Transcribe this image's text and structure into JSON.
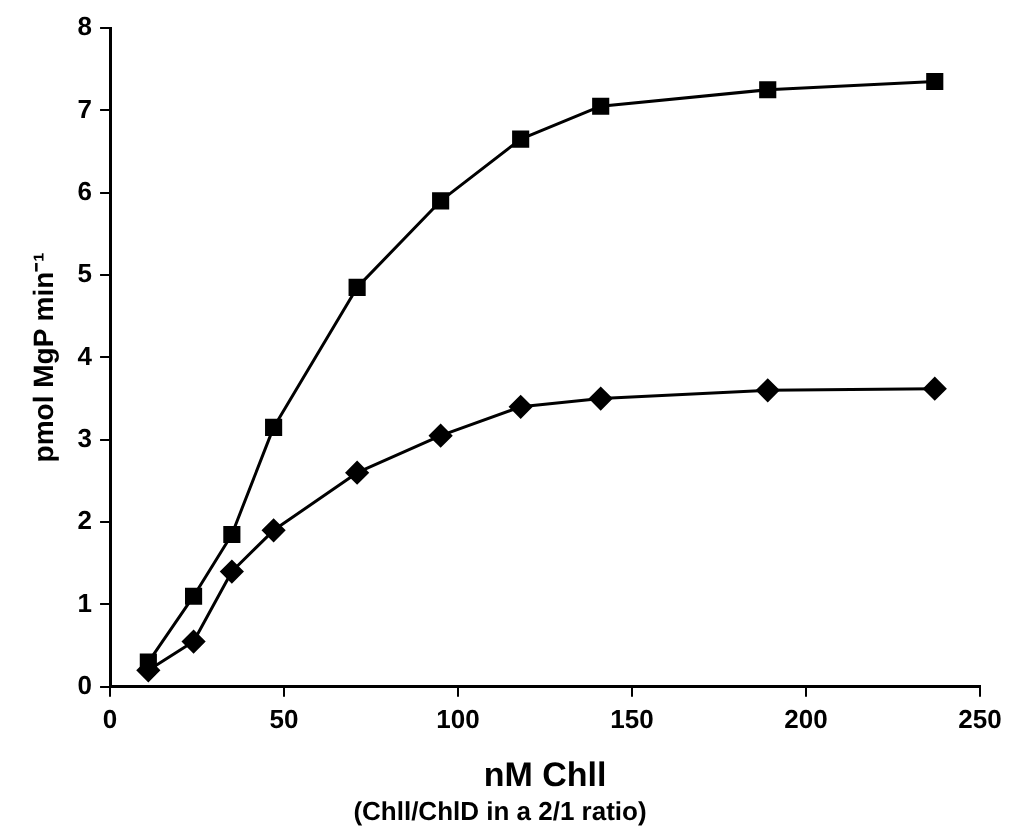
{
  "chart_data": {
    "type": "line",
    "xlabel": "nM Chll",
    "ylabel": "pmol MgP min⁻¹",
    "annotations": [
      "(Chll/ChlD in a 2/1 ratio)"
    ],
    "xlim": [
      0,
      250
    ],
    "xticks": [
      0,
      50,
      100,
      150,
      200,
      250
    ],
    "ylim": [
      0,
      8
    ],
    "yticks": [
      0,
      1,
      2,
      3,
      4,
      5,
      6,
      7,
      8
    ],
    "grid": false,
    "legend": false,
    "line_style": "solid",
    "series": [
      {
        "color": "#000000",
        "marker": "square",
        "x": [
          11,
          24,
          35,
          47,
          71,
          95,
          118,
          141,
          189,
          237
        ],
        "values": [
          0.3,
          1.1,
          1.85,
          3.15,
          4.85,
          5.9,
          6.65,
          7.05,
          7.25,
          7.35
        ]
      },
      {
        "color": "#000000",
        "marker": "diamond",
        "x": [
          11,
          24,
          35,
          47,
          71,
          95,
          118,
          141,
          189,
          237
        ],
        "values": [
          0.2,
          0.55,
          1.4,
          1.9,
          2.6,
          3.05,
          3.4,
          3.5,
          3.6,
          3.62
        ]
      }
    ]
  }
}
